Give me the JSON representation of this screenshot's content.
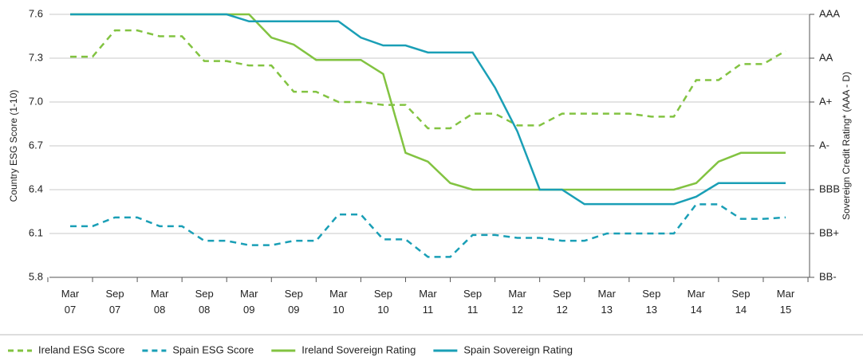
{
  "chart_data": {
    "type": "line",
    "ylabel": "Country ESG Score (1-10)",
    "y2label": "Sovereign Credit Rating* (AAA - D)",
    "categories": [
      "Mar 07",
      null,
      "Sep 07",
      null,
      "Mar 08",
      null,
      "Sep 08",
      null,
      "Mar 09",
      null,
      "Sep 09",
      null,
      "Mar 10",
      null,
      "Sep 10",
      null,
      "Mar 11",
      null,
      "Sep 11",
      null,
      "Mar 12",
      null,
      "Sep 12",
      null,
      "Mar 13",
      null,
      "Sep 13",
      null,
      "Mar 14",
      null,
      "Sep 14",
      null,
      "Mar 15"
    ],
    "ylim": [
      5.8,
      7.6
    ],
    "yticks": [
      5.8,
      6.1,
      6.4,
      6.7,
      {
        "value": 7.0,
        "label": "7.0"
      },
      7.3,
      7.6
    ],
    "y2lim": [
      0,
      6
    ],
    "y2ticks": [
      {
        "value": 0,
        "label": "BB-"
      },
      {
        "value": 1,
        "label": "BB+"
      },
      {
        "value": 2,
        "label": "BBB"
      },
      {
        "value": 3,
        "label": "A-"
      },
      {
        "value": 4,
        "label": "A+"
      },
      {
        "value": 5,
        "label": "AA"
      },
      {
        "value": 6,
        "label": "AAA"
      }
    ],
    "grid": true,
    "legend": "bottom-left",
    "series": [
      {
        "name": "Ireland ESG Score",
        "color": "#82c341",
        "style": "dashed",
        "values": [
          7.31,
          7.31,
          7.49,
          7.49,
          7.45,
          7.45,
          7.28,
          7.28,
          7.25,
          7.25,
          7.07,
          7.07,
          7.0,
          7.0,
          6.98,
          6.98,
          6.82,
          6.82,
          6.92,
          6.92,
          6.84,
          6.84,
          6.92,
          6.92,
          6.92,
          6.92,
          6.9,
          6.9,
          7.15,
          7.15,
          7.26,
          7.26,
          7.35
        ]
      },
      {
        "name": "Spain ESG Score",
        "color": "#1a9fb6",
        "style": "dashed",
        "values": [
          6.15,
          6.15,
          6.21,
          6.21,
          6.15,
          6.15,
          6.05,
          6.05,
          6.02,
          6.02,
          6.05,
          6.05,
          6.23,
          6.23,
          6.06,
          6.06,
          5.94,
          5.94,
          6.09,
          6.09,
          6.07,
          6.07,
          6.05,
          6.05,
          6.1,
          6.1,
          6.1,
          6.1,
          6.3,
          6.3,
          6.2,
          6.2,
          6.21
        ]
      },
      {
        "name": "Ireland Sovereign Rating",
        "color": "#82c341",
        "style": "solid",
        "axis": "y2",
        "values": [
          6,
          6,
          6,
          6,
          6,
          6,
          6,
          6,
          6,
          5.47,
          5.31,
          4.96,
          4.96,
          4.96,
          4.64,
          2.84,
          2.64,
          2.15,
          2,
          2,
          2,
          2,
          2,
          2,
          2,
          2,
          2,
          2,
          2.15,
          2.64,
          2.84,
          2.84,
          2.84
        ]
      },
      {
        "name": "Spain Sovereign Rating",
        "color": "#1a9fb6",
        "style": "solid",
        "axis": "y2",
        "values": [
          6,
          6,
          6,
          6,
          6,
          6,
          6,
          6,
          5.84,
          5.84,
          5.84,
          5.84,
          5.84,
          5.47,
          5.29,
          5.29,
          5.13,
          5.13,
          5.13,
          4.33,
          3.33,
          2,
          2,
          1.67,
          1.67,
          1.67,
          1.67,
          1.67,
          1.84,
          2.15,
          2.15,
          2.15,
          2.15
        ]
      }
    ]
  }
}
